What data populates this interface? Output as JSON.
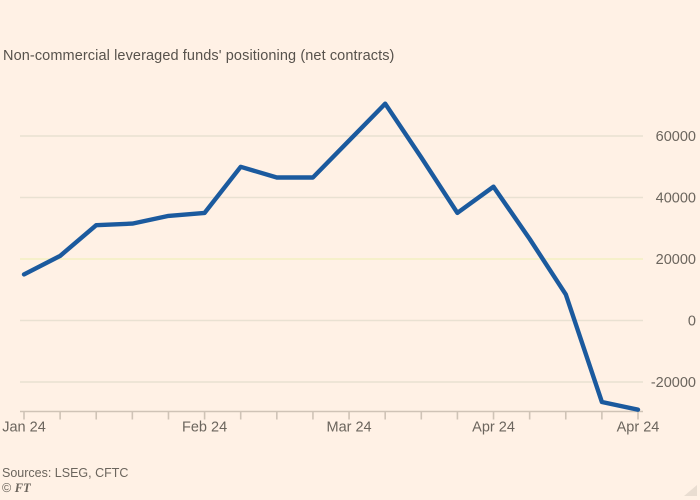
{
  "header": {
    "subtitle": "Non-commercial leveraged funds' positioning (net contracts)"
  },
  "footer": {
    "source": "Sources: LSEG, CFTC",
    "copyright_symbol": "©",
    "copyright_brand": "FT"
  },
  "colors": {
    "background": "#FFF1E5",
    "line": "#1b5a9e",
    "gridline": "#e9e1d2",
    "gridline_highlight": "#f3efc2",
    "axis": "#cfc3b6",
    "label_text": "#6b655d",
    "title_text": "#57524c",
    "resize_handle": "#e9ddd1"
  },
  "chart_data": {
    "type": "line",
    "title": "Non-commercial leveraged funds' positioning (net contracts)",
    "point_count": 18,
    "values": [
      15000,
      21000,
      31000,
      31500,
      34000,
      35000,
      50000,
      46500,
      46500,
      58500,
      70500,
      53000,
      35000,
      43500,
      26500,
      8500,
      -26500,
      -29000
    ],
    "x_tick_labels": [
      {
        "text": "Jan 24",
        "index": 0
      },
      {
        "text": "Feb 24",
        "index": 5
      },
      {
        "text": "Mar 24",
        "index": 9
      },
      {
        "text": "Apr 24",
        "index": 13
      },
      {
        "text": "Apr 24",
        "index": 17
      }
    ],
    "y_ticks": [
      60000,
      40000,
      20000,
      0,
      -20000
    ],
    "y_tick_labels": [
      "60000",
      "40000",
      "20000",
      "0",
      "-20000"
    ],
    "highlighted_gridline_value": 20000,
    "y_axis_side": "right",
    "grid": "horizontal",
    "legend": "none",
    "ylim": [
      -29500,
      71700
    ]
  }
}
